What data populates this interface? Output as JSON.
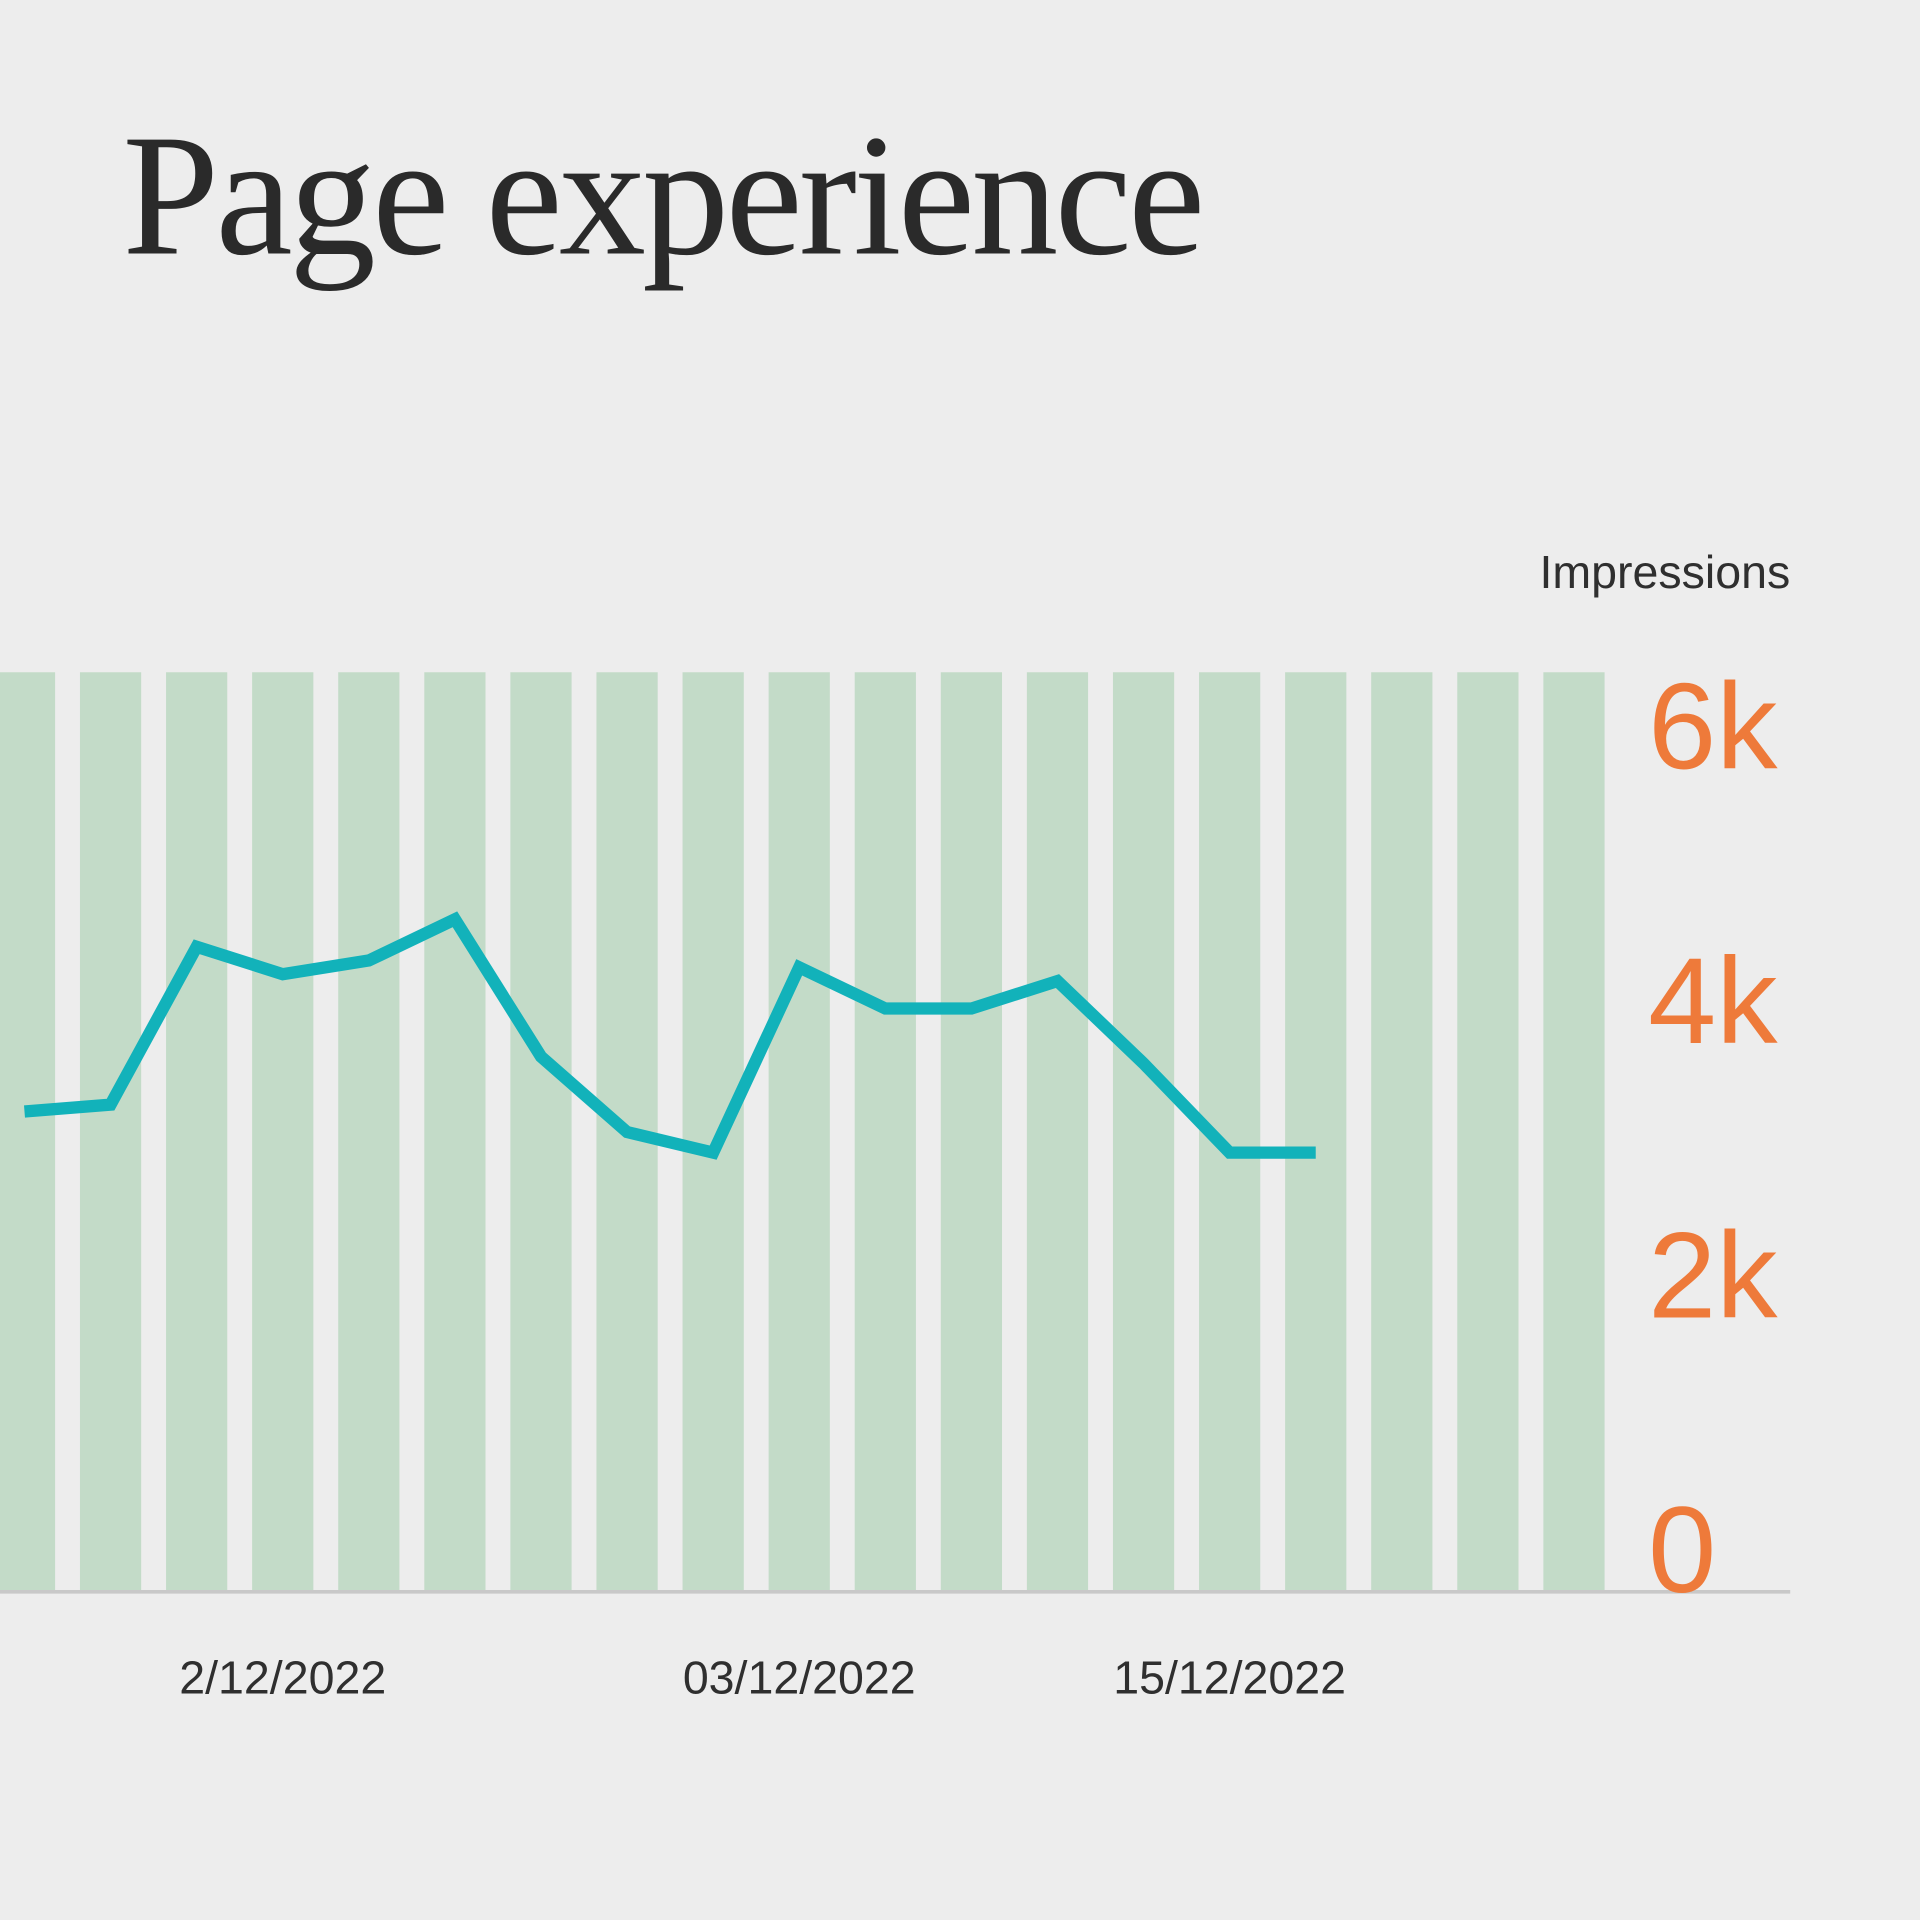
{
  "chart_data": {
    "type": "bar-line",
    "title": "Page experience",
    "y_label": "Impressions",
    "categories": [
      null,
      null,
      null,
      "2/12/2022",
      null,
      null,
      null,
      null,
      null,
      "03/12/2022",
      null,
      null,
      null,
      null,
      "15/12/2022",
      null,
      null,
      null,
      null
    ],
    "bars": {
      "color": "#c3dbc8",
      "values": [
        6700,
        6700,
        6700,
        6700,
        6700,
        6700,
        6700,
        6700,
        6700,
        6700,
        6700,
        6700,
        6700,
        6700,
        6700,
        6700,
        6700,
        6700,
        6700
      ]
    },
    "line": {
      "color": "#12b2ba",
      "values": [
        3500,
        3550,
        4700,
        4500,
        4600,
        4900,
        3900,
        3350,
        3200,
        4550,
        4250,
        4250,
        4450,
        3850,
        3200,
        3200,
        null,
        null,
        null
      ]
    },
    "ylim": [
      0,
      6700
    ],
    "yticks": [
      0,
      {
        "value": 2000,
        "label": "2k"
      },
      {
        "value": 4000,
        "label": "4k"
      },
      {
        "value": 6000,
        "label": "6k"
      }
    ],
    "tick_color": "#ee7a3a"
  }
}
